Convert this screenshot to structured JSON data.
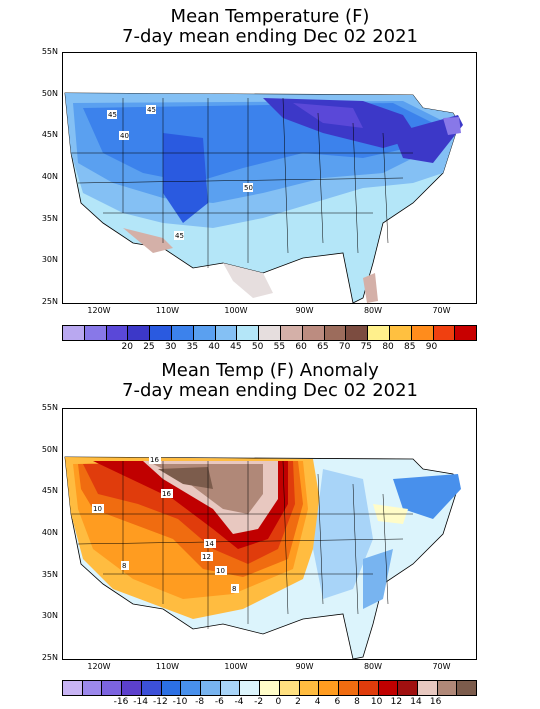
{
  "panel1": {
    "title_line1": "Mean Temperature (F)",
    "title_line2": "7-day mean ending Dec 02 2021",
    "lat_labels": [
      "55N",
      "50N",
      "45N",
      "40N",
      "35N",
      "30N",
      "25N"
    ],
    "lon_labels": [
      "120W",
      "110W",
      "100W",
      "90W",
      "80W",
      "70W"
    ],
    "contour_labels": [
      "45",
      "45",
      "40",
      "50",
      "45"
    ],
    "colorbar": {
      "colors": [
        "#b9a8f0",
        "#8878e8",
        "#5a48d8",
        "#3c38c8",
        "#2a5ae0",
        "#3c82ec",
        "#5aa0f0",
        "#84c0f4",
        "#b4e6f8",
        "#e6dede",
        "#d4b0a8",
        "#bc8c80",
        "#9c6c5c",
        "#7c4c40",
        "#fff08c",
        "#ffc040",
        "#ff8c1c",
        "#f04010",
        "#c80000"
      ],
      "labels": [
        "20",
        "25",
        "30",
        "35",
        "40",
        "45",
        "50",
        "55",
        "60",
        "65",
        "70",
        "75",
        "80",
        "85",
        "90"
      ]
    }
  },
  "panel2": {
    "title_line1": "Mean Temp (F) Anomaly",
    "title_line2": "7-day mean ending Dec 02 2021",
    "lat_labels": [
      "55N",
      "50N",
      "45N",
      "40N",
      "35N",
      "30N",
      "25N"
    ],
    "lon_labels": [
      "120W",
      "110W",
      "100W",
      "90W",
      "80W",
      "70W"
    ],
    "contour_labels": [
      "16",
      "10",
      "16",
      "14",
      "12",
      "10",
      "8",
      "8"
    ],
    "colorbar": {
      "colors": [
        "#c8b4f4",
        "#9c88ec",
        "#7c64e0",
        "#5c40cc",
        "#3c50d8",
        "#2c70e4",
        "#4890ec",
        "#78b4f0",
        "#a8d4f8",
        "#dcf4fc",
        "#fffcc8",
        "#ffe080",
        "#ffbc40",
        "#ff9c20",
        "#f06c10",
        "#e03c0c",
        "#c00000",
        "#a01010",
        "#e8c8c0",
        "#b08878",
        "#7c5c4c"
      ],
      "labels": [
        "-16",
        "-14",
        "-12",
        "-10",
        "-8",
        "-6",
        "-4",
        "-2",
        "0",
        "2",
        "4",
        "6",
        "8",
        "10",
        "12",
        "14",
        "16"
      ]
    }
  }
}
